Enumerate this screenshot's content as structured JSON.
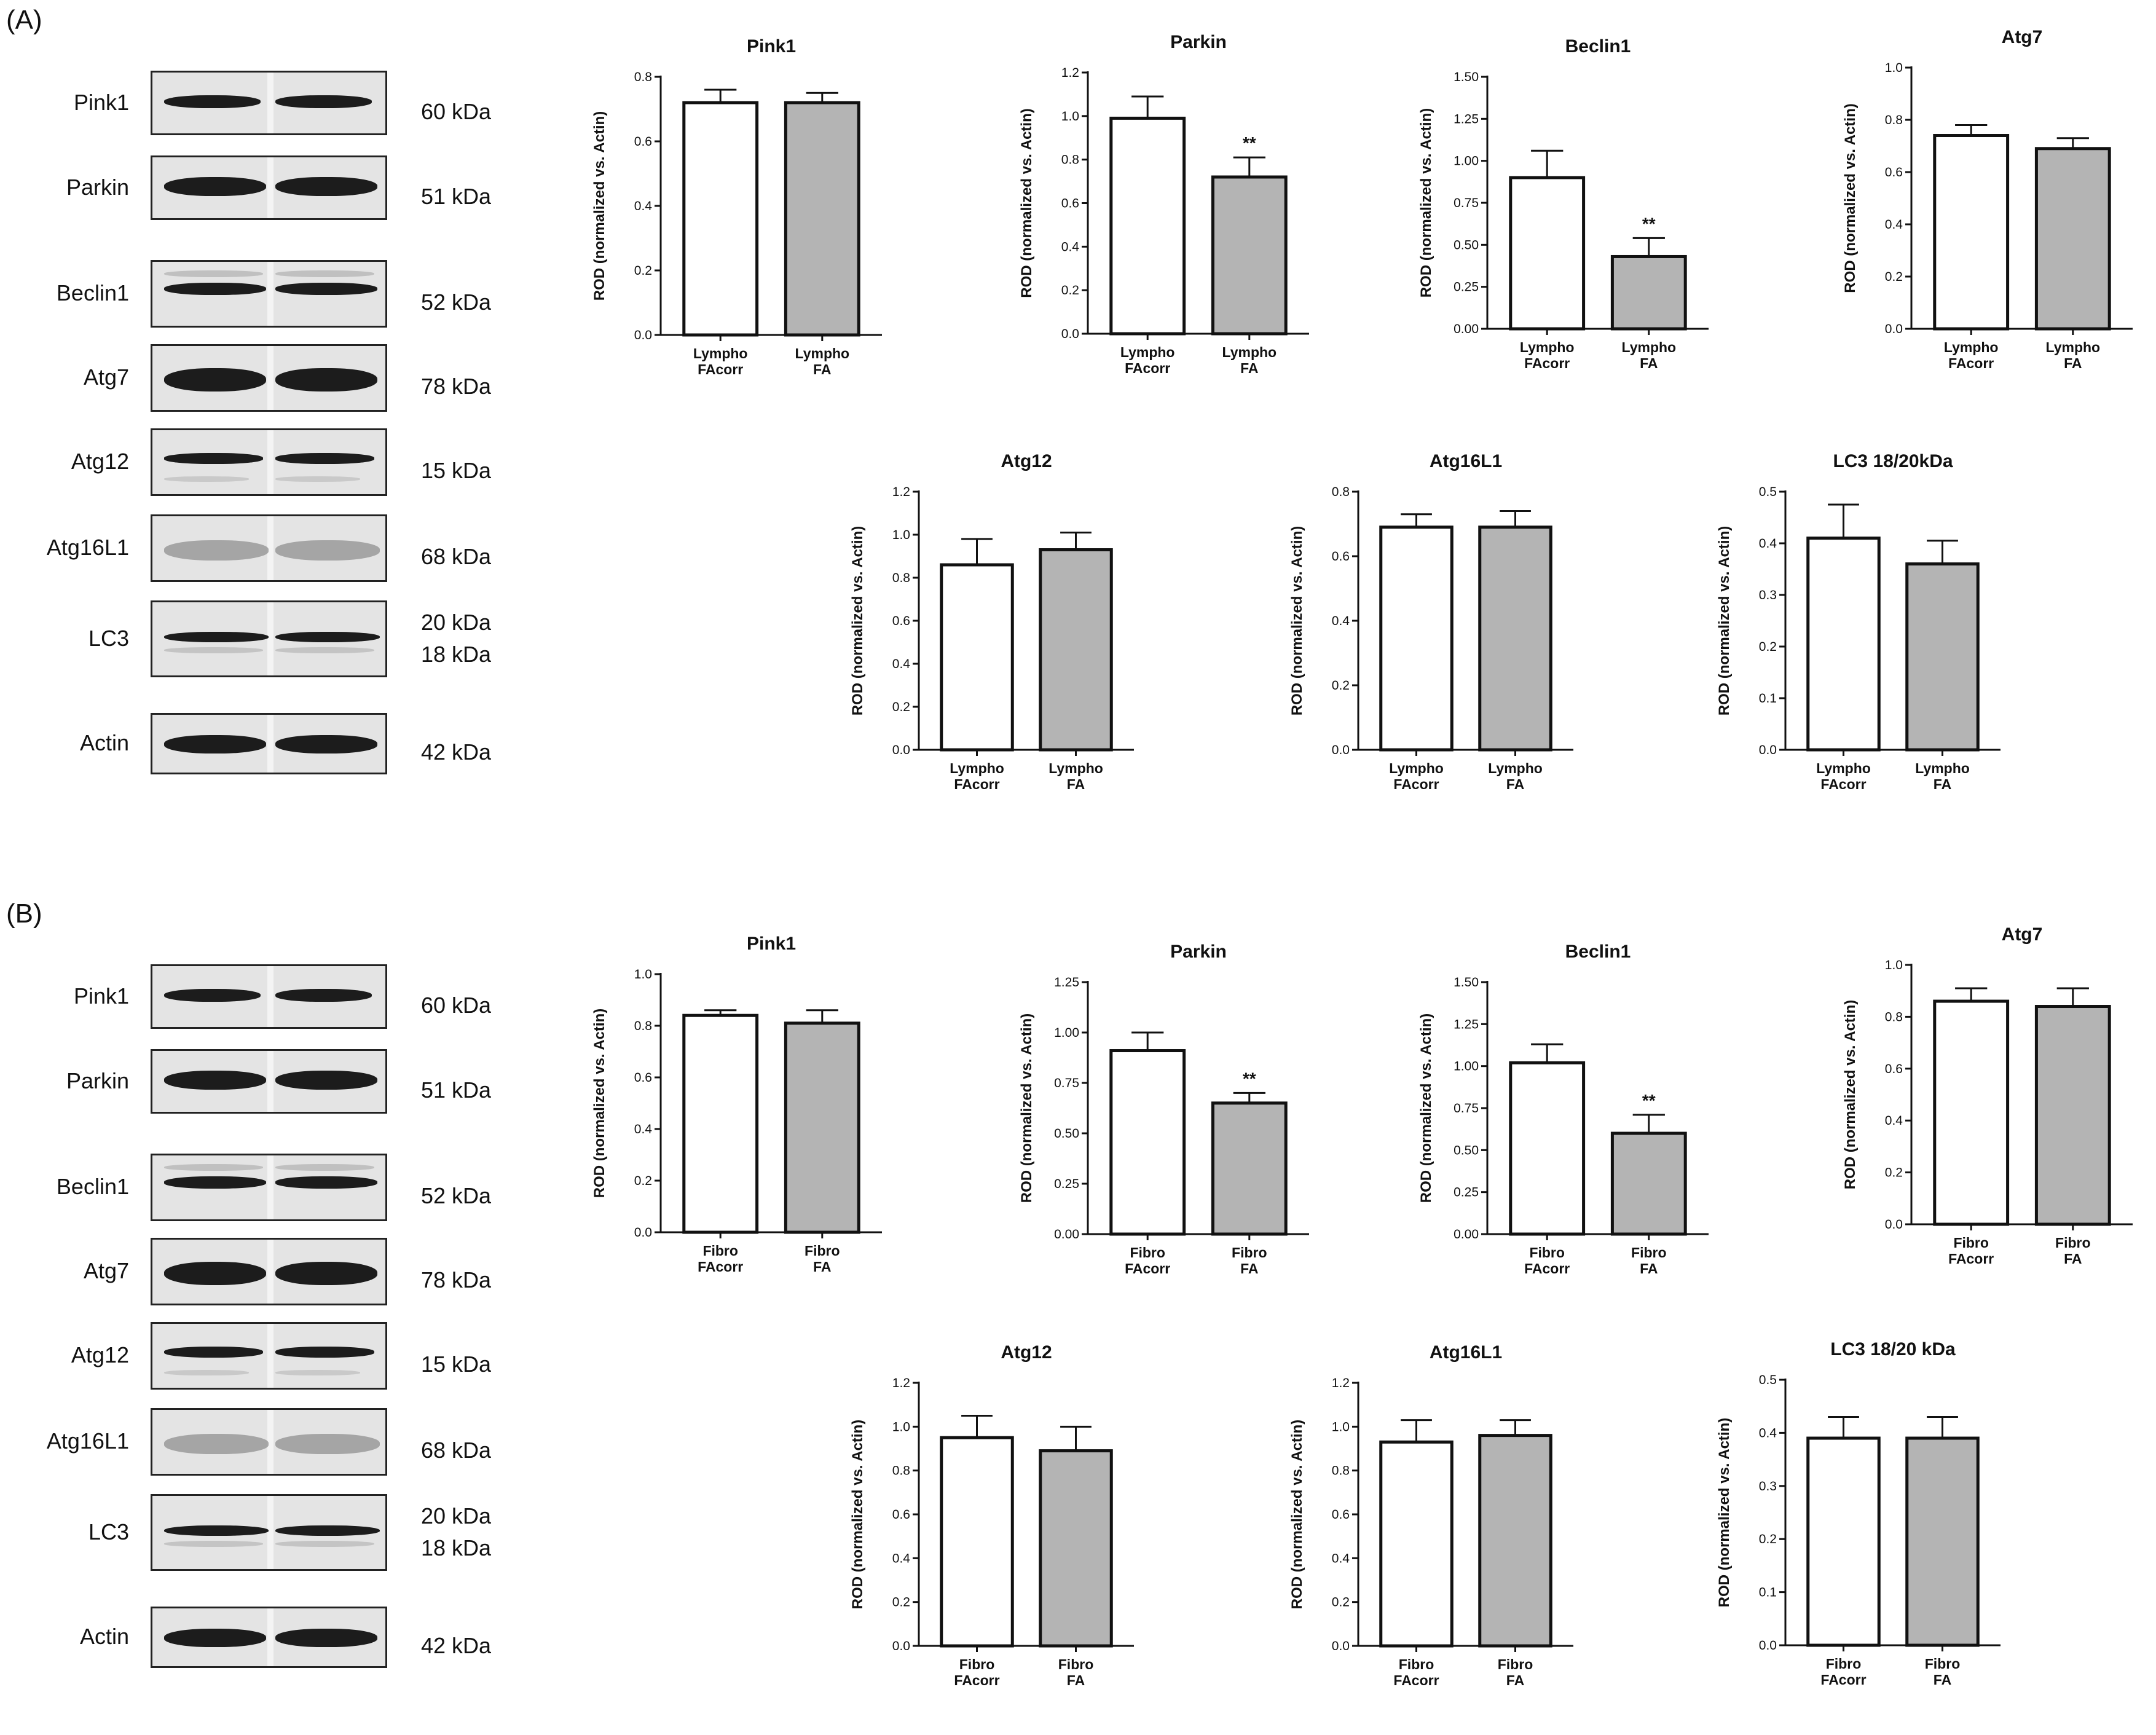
{
  "panels": [
    {
      "label": "(A)",
      "blots": [
        {
          "name": "Pink1",
          "kda": [
            "60 kDa"
          ]
        },
        {
          "name": "Parkin",
          "kda": [
            "51 kDa"
          ]
        },
        {
          "name": "Beclin1",
          "kda": [
            "52 kDa"
          ]
        },
        {
          "name": "Atg7",
          "kda": [
            "78 kDa"
          ]
        },
        {
          "name": "Atg12",
          "kda": [
            "15 kDa"
          ]
        },
        {
          "name": "Atg16L1",
          "kda": [
            "68 kDa"
          ]
        },
        {
          "name": "LC3",
          "kda": [
            "20 kDa",
            "18 kDa"
          ]
        },
        {
          "name": "Actin",
          "kda": [
            "42 kDa"
          ]
        }
      ]
    },
    {
      "label": "(B)",
      "blots": [
        {
          "name": "Pink1",
          "kda": [
            "60 kDa"
          ]
        },
        {
          "name": "Parkin",
          "kda": [
            "51 kDa"
          ]
        },
        {
          "name": "Beclin1",
          "kda": [
            "52 kDa"
          ]
        },
        {
          "name": "Atg7",
          "kda": [
            "78 kDa"
          ]
        },
        {
          "name": "Atg12",
          "kda": [
            "15 kDa"
          ]
        },
        {
          "name": "Atg16L1",
          "kda": [
            "68 kDa"
          ]
        },
        {
          "name": "LC3",
          "kda": [
            "20 kDa",
            "18 kDa"
          ]
        },
        {
          "name": "Actin",
          "kda": [
            "42 kDa"
          ]
        }
      ]
    }
  ],
  "chart_data": [
    {
      "type": "bar",
      "panel": "A",
      "title": "Pink1",
      "ylabel": "ROD (normalized vs. Actin)",
      "ylim": [
        0,
        0.8
      ],
      "yticks": [
        "0.0",
        "0.2",
        "0.4",
        "0.6",
        "0.8"
      ],
      "categories": [
        [
          "Lympho",
          "FAcorr"
        ],
        [
          "Lympho",
          "FA"
        ]
      ],
      "values": [
        0.72,
        0.72
      ],
      "errors": [
        0.04,
        0.03
      ],
      "significance": [
        "",
        ""
      ]
    },
    {
      "type": "bar",
      "panel": "A",
      "title": "Parkin",
      "ylabel": "ROD (normalized vs. Actin)",
      "ylim": [
        0,
        1.2
      ],
      "yticks": [
        "0.0",
        "0.2",
        "0.4",
        "0.6",
        "0.8",
        "1.0",
        "1.2"
      ],
      "categories": [
        [
          "Lympho",
          "FAcorr"
        ],
        [
          "Lympho",
          "FA"
        ]
      ],
      "values": [
        0.99,
        0.72
      ],
      "errors": [
        0.1,
        0.09
      ],
      "significance": [
        "",
        "**"
      ]
    },
    {
      "type": "bar",
      "panel": "A",
      "title": "Beclin1",
      "ylabel": "ROD (normalized vs. Actin)",
      "ylim": [
        0,
        1.5
      ],
      "yticks": [
        "0.00",
        "0.25",
        "0.50",
        "0.75",
        "1.00",
        "1.25",
        "1.50"
      ],
      "categories": [
        [
          "Lympho",
          "FAcorr"
        ],
        [
          "Lympho",
          "FA"
        ]
      ],
      "values": [
        0.9,
        0.43
      ],
      "errors": [
        0.16,
        0.11
      ],
      "significance": [
        "",
        "**"
      ]
    },
    {
      "type": "bar",
      "panel": "A",
      "title": "Atg7",
      "ylabel": "ROD (normalized vs. Actin)",
      "ylim": [
        0,
        1.0
      ],
      "yticks": [
        "0.0",
        "0.2",
        "0.4",
        "0.6",
        "0.8",
        "1.0"
      ],
      "categories": [
        [
          "Lympho",
          "FAcorr"
        ],
        [
          "Lympho",
          "FA"
        ]
      ],
      "values": [
        0.74,
        0.69
      ],
      "errors": [
        0.04,
        0.04
      ],
      "significance": [
        "",
        ""
      ]
    },
    {
      "type": "bar",
      "panel": "A",
      "title": "Atg12",
      "ylabel": "ROD (normalized vs. Actin)",
      "ylim": [
        0,
        1.2
      ],
      "yticks": [
        "0.0",
        "0.2",
        "0.4",
        "0.6",
        "0.8",
        "1.0",
        "1.2"
      ],
      "categories": [
        [
          "Lympho",
          "FAcorr"
        ],
        [
          "Lympho",
          "FA"
        ]
      ],
      "values": [
        0.86,
        0.93
      ],
      "errors": [
        0.12,
        0.08
      ],
      "significance": [
        "",
        ""
      ]
    },
    {
      "type": "bar",
      "panel": "A",
      "title": "Atg16L1",
      "ylabel": "ROD (normalized vs. Actin)",
      "ylim": [
        0,
        0.8
      ],
      "yticks": [
        "0.0",
        "0.2",
        "0.4",
        "0.6",
        "0.8"
      ],
      "categories": [
        [
          "Lympho",
          "FAcorr"
        ],
        [
          "Lympho",
          "FA"
        ]
      ],
      "values": [
        0.69,
        0.69
      ],
      "errors": [
        0.04,
        0.05
      ],
      "significance": [
        "",
        ""
      ]
    },
    {
      "type": "bar",
      "panel": "A",
      "title": "LC3 18/20kDa",
      "ylabel": "ROD (normalized vs. Actin)",
      "ylim": [
        0,
        0.5
      ],
      "yticks": [
        "0.0",
        "0.1",
        "0.2",
        "0.3",
        "0.4",
        "0.5"
      ],
      "categories": [
        [
          "Lympho",
          "FAcorr"
        ],
        [
          "Lympho",
          "FA"
        ]
      ],
      "values": [
        0.41,
        0.36
      ],
      "errors": [
        0.065,
        0.045
      ],
      "significance": [
        "",
        ""
      ]
    },
    {
      "type": "bar",
      "panel": "B",
      "title": "Pink1",
      "ylabel": "ROD (normalized vs. Actin)",
      "ylim": [
        0,
        1.0
      ],
      "yticks": [
        "0.0",
        "0.2",
        "0.4",
        "0.6",
        "0.8",
        "1.0"
      ],
      "categories": [
        [
          "Fibro",
          "FAcorr"
        ],
        [
          "Fibro",
          "FA"
        ]
      ],
      "values": [
        0.84,
        0.81
      ],
      "errors": [
        0.02,
        0.05
      ],
      "significance": [
        "",
        ""
      ]
    },
    {
      "type": "bar",
      "panel": "B",
      "title": "Parkin",
      "ylabel": "ROD (normalized vs. Actin)",
      "ylim": [
        0,
        1.25
      ],
      "yticks": [
        "0.00",
        "0.25",
        "0.50",
        "0.75",
        "1.00",
        "1.25"
      ],
      "categories": [
        [
          "Fibro",
          "FAcorr"
        ],
        [
          "Fibro",
          "FA"
        ]
      ],
      "values": [
        0.91,
        0.65
      ],
      "errors": [
        0.09,
        0.05
      ],
      "significance": [
        "",
        "**"
      ]
    },
    {
      "type": "bar",
      "panel": "B",
      "title": "Beclin1",
      "ylabel": "ROD (normalized vs. Actin)",
      "ylim": [
        0,
        1.5
      ],
      "yticks": [
        "0.00",
        "0.25",
        "0.50",
        "0.75",
        "1.00",
        "1.25",
        "1.50"
      ],
      "categories": [
        [
          "Fibro",
          "FAcorr"
        ],
        [
          "Fibro",
          "FA"
        ]
      ],
      "values": [
        1.02,
        0.6
      ],
      "errors": [
        0.11,
        0.11
      ],
      "significance": [
        "",
        "**"
      ]
    },
    {
      "type": "bar",
      "panel": "B",
      "title": "Atg7",
      "ylabel": "ROD (normalized vs. Actin)",
      "ylim": [
        0,
        1.0
      ],
      "yticks": [
        "0.0",
        "0.2",
        "0.4",
        "0.6",
        "0.8",
        "1.0"
      ],
      "categories": [
        [
          "Fibro",
          "FAcorr"
        ],
        [
          "Fibro",
          "FA"
        ]
      ],
      "values": [
        0.86,
        0.84
      ],
      "errors": [
        0.05,
        0.07
      ],
      "significance": [
        "",
        ""
      ]
    },
    {
      "type": "bar",
      "panel": "B",
      "title": "Atg12",
      "ylabel": "ROD (normalized vs. Actin)",
      "ylim": [
        0,
        1.2
      ],
      "yticks": [
        "0.0",
        "0.2",
        "0.4",
        "0.6",
        "0.8",
        "1.0",
        "1.2"
      ],
      "categories": [
        [
          "Fibro",
          "FAcorr"
        ],
        [
          "Fibro",
          "FA"
        ]
      ],
      "values": [
        0.95,
        0.89
      ],
      "errors": [
        0.1,
        0.11
      ],
      "significance": [
        "",
        ""
      ]
    },
    {
      "type": "bar",
      "panel": "B",
      "title": "Atg16L1",
      "ylabel": "ROD (normalized vs. Actin)",
      "ylim": [
        0,
        1.2
      ],
      "yticks": [
        "0.0",
        "0.2",
        "0.4",
        "0.6",
        "0.8",
        "1.0",
        "1.2"
      ],
      "categories": [
        [
          "Fibro",
          "FAcorr"
        ],
        [
          "Fibro",
          "FA"
        ]
      ],
      "values": [
        0.93,
        0.96
      ],
      "errors": [
        0.1,
        0.07
      ],
      "significance": [
        "",
        ""
      ]
    },
    {
      "type": "bar",
      "panel": "B",
      "title": "LC3 18/20 kDa",
      "ylabel": "ROD (normalized vs. Actin)",
      "ylim": [
        0,
        0.5
      ],
      "yticks": [
        "0.0",
        "0.1",
        "0.2",
        "0.3",
        "0.4",
        "0.5"
      ],
      "categories": [
        [
          "Fibro",
          "FAcorr"
        ],
        [
          "Fibro",
          "FA"
        ]
      ],
      "values": [
        0.39,
        0.39
      ],
      "errors": [
        0.04,
        0.04
      ],
      "significance": [
        "",
        ""
      ]
    }
  ],
  "colors": {
    "control_bar": "#ffffff",
    "fa_bar": "#b4b4b4",
    "axis": "#111111"
  }
}
